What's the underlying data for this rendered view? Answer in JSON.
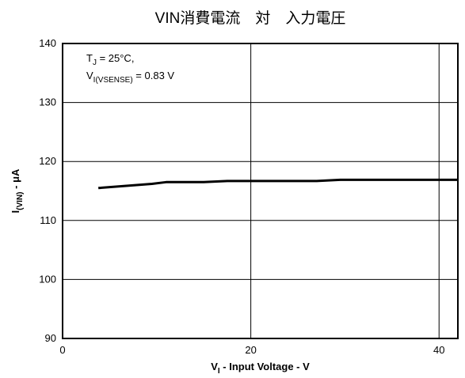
{
  "chart_data": {
    "type": "line",
    "title": "VIN消費電流　対　入力電圧",
    "xlabel": {
      "main": "V",
      "sub": "I",
      "rest": " - Input Voltage - V"
    },
    "ylabel": {
      "main": "I",
      "sub": "(VIN)",
      "rest": " - μA"
    },
    "xlim": [
      0,
      42
    ],
    "ylim": [
      90,
      140
    ],
    "xticks": [
      0,
      20,
      40
    ],
    "yticks": [
      90,
      100,
      110,
      120,
      130,
      140
    ],
    "grid": true,
    "annotations": [
      {
        "main": "T",
        "sub": "J",
        "rest": " = 25°C,"
      },
      {
        "main": "V",
        "sub": "I(VSENSE)",
        "rest": " = 0.83 V"
      }
    ],
    "series": [
      {
        "x": [
          3.8,
          9.5,
          11,
          15,
          17.5,
          20,
          27,
          29.5,
          35,
          42
        ],
        "y": [
          115.5,
          116.2,
          116.5,
          116.5,
          116.7,
          116.7,
          116.7,
          116.9,
          116.9,
          116.9
        ]
      }
    ]
  }
}
